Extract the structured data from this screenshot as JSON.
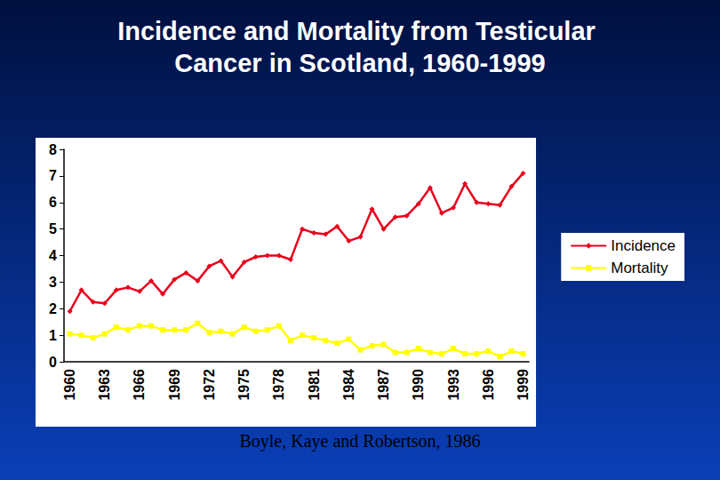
{
  "chart_data": {
    "type": "line",
    "title": "Incidence and Mortality from Testicular Cancer in Scotland, 1960-1999",
    "annotations": [
      "Boyle, Kaye and Robertson, 1986"
    ],
    "categories": [
      "1960",
      null,
      null,
      "1963",
      null,
      null,
      "1966",
      null,
      null,
      "1969",
      null,
      null,
      "1972",
      null,
      null,
      "1975",
      null,
      null,
      "1978",
      null,
      null,
      "1981",
      null,
      null,
      "1984",
      null,
      null,
      "1987",
      null,
      null,
      "1990",
      null,
      null,
      "1993",
      null,
      null,
      "1996",
      null,
      null,
      "1999"
    ],
    "series": [
      {
        "name": "Incidence",
        "color": "#e8001c",
        "marker": "diamond",
        "values": [
          1.9,
          2.7,
          2.25,
          2.2,
          2.7,
          2.8,
          2.65,
          3.05,
          2.55,
          3.1,
          3.35,
          3.05,
          3.6,
          3.8,
          3.2,
          3.75,
          3.95,
          4.0,
          4.0,
          3.85,
          5.0,
          4.85,
          4.8,
          5.1,
          4.55,
          4.7,
          5.75,
          5.0,
          5.45,
          5.5,
          5.95,
          6.55,
          5.6,
          5.8,
          6.7,
          6.0,
          5.95,
          5.9,
          6.6,
          7.1
        ]
      },
      {
        "name": "Mortality",
        "color": "#ffff00",
        "marker": "square",
        "values": [
          1.05,
          1.0,
          0.9,
          1.05,
          1.3,
          1.2,
          1.35,
          1.35,
          1.2,
          1.2,
          1.2,
          1.45,
          1.1,
          1.15,
          1.05,
          1.3,
          1.15,
          1.2,
          1.35,
          0.8,
          1.0,
          0.9,
          0.8,
          0.7,
          0.85,
          0.45,
          0.6,
          0.65,
          0.35,
          0.35,
          0.5,
          0.35,
          0.3,
          0.5,
          0.3,
          0.3,
          0.4,
          0.2,
          0.4,
          0.3
        ]
      }
    ],
    "ylim": [
      0,
      8
    ],
    "yticks": [
      0,
      1,
      2,
      3,
      4,
      5,
      6,
      7,
      8
    ],
    "grid": false,
    "legend": "right"
  }
}
